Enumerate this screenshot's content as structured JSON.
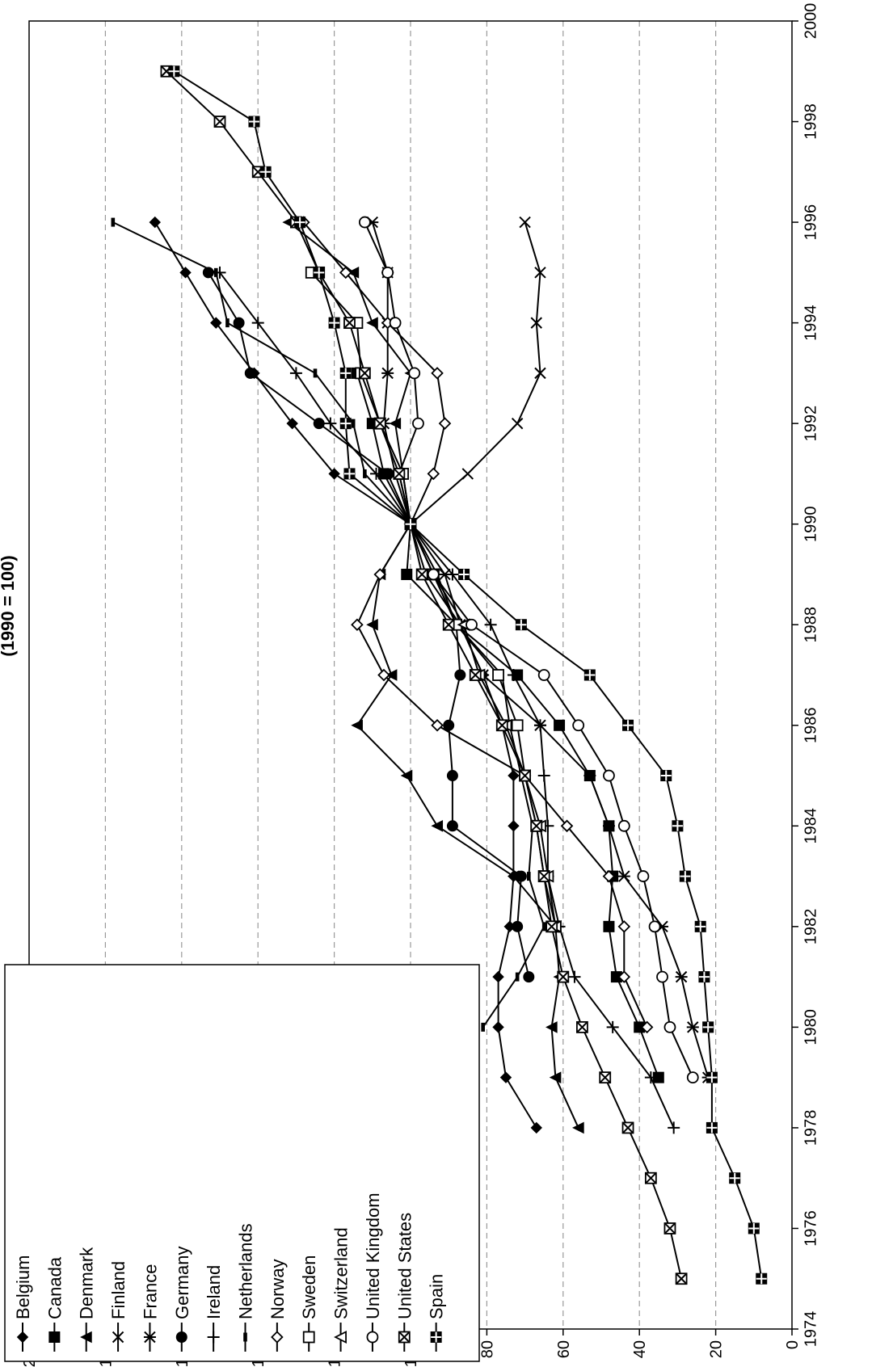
{
  "chart_data": {
    "type": "line",
    "title": "(1990 = 100)",
    "xlabel": "",
    "ylabel": "",
    "xlim": [
      1974,
      2000
    ],
    "ylim": [
      0,
      200
    ],
    "x_ticks": [
      "1974",
      "1976",
      "1978",
      "1980",
      "1982",
      "1984",
      "1986",
      "1988",
      "1990",
      "1992",
      "1994",
      "1996",
      "1998",
      "2000"
    ],
    "y_ticks": [
      "0",
      "20",
      "40",
      "60",
      "80",
      "100",
      "120",
      "140",
      "160",
      "180",
      "200"
    ],
    "grid": "dashed horizontal at each y tick",
    "legend_position": "lower-left",
    "series": [
      {
        "name": "Belgium",
        "marker": "diamond-filled",
        "x": [
          1978,
          1979,
          1980,
          1981,
          1982,
          1983,
          1984,
          1985,
          1986,
          1987,
          1988,
          1989,
          1990,
          1991,
          1992,
          1993,
          1994,
          1995,
          1996
        ],
        "y": [
          67,
          75,
          77,
          77,
          74,
          73,
          73,
          73,
          76,
          81,
          87,
          96,
          100,
          120,
          131,
          141,
          151,
          159,
          167
        ]
      },
      {
        "name": "Canada",
        "marker": "square-filled",
        "x": [
          1979,
          1980,
          1981,
          1982,
          1983,
          1984,
          1985,
          1986,
          1987,
          1988,
          1989,
          1990,
          1991,
          1992,
          1993
        ],
        "y": [
          35,
          40,
          46,
          48,
          47,
          48,
          53,
          61,
          72,
          88,
          101,
          100,
          107,
          110,
          114
        ]
      },
      {
        "name": "Denmark",
        "marker": "triangle-filled",
        "x": [
          1978,
          1979,
          1980,
          1981,
          1982,
          1983,
          1984,
          1985,
          1986,
          1987,
          1988,
          1989,
          1990,
          1991,
          1992,
          1993,
          1994,
          1995,
          1996
        ],
        "y": [
          56,
          62,
          63,
          61,
          62,
          73,
          93,
          101,
          114,
          105,
          110,
          108,
          100,
          102,
          104,
          100,
          110,
          115,
          132
        ]
      },
      {
        "name": "Finland",
        "marker": "x",
        "x": [
          1990,
          1991,
          1992,
          1993,
          1994,
          1995,
          1996
        ],
        "y": [
          100,
          85,
          72,
          66,
          67,
          66,
          70
        ]
      },
      {
        "name": "France",
        "marker": "star",
        "x": [
          1979,
          1980,
          1981,
          1982,
          1983,
          1984,
          1985,
          1986,
          1987,
          1988,
          1989,
          1990,
          1991,
          1992,
          1993,
          1994,
          1995,
          1996
        ],
        "y": [
          22,
          26,
          29,
          34,
          44,
          48,
          53,
          66,
          81,
          87,
          91,
          100,
          104,
          107,
          106,
          106,
          106,
          110
        ]
      },
      {
        "name": "Germany",
        "marker": "circle-filled",
        "x": [
          1981,
          1982,
          1983,
          1984,
          1985,
          1986,
          1987,
          1988,
          1989,
          1990,
          1991,
          1992,
          1993,
          1994,
          1995
        ],
        "y": [
          69,
          72,
          71,
          89,
          89,
          90,
          87,
          88,
          94,
          100,
          106,
          124,
          142,
          145,
          153
        ]
      },
      {
        "name": "Ireland",
        "marker": "plus",
        "x": [
          1978,
          1979,
          1980,
          1981,
          1982,
          1983,
          1984,
          1985,
          1986,
          1987,
          1988,
          1989,
          1990,
          1991,
          1992,
          1993,
          1994,
          1995
        ],
        "y": [
          31,
          37,
          47,
          57,
          61,
          64,
          64,
          65,
          66,
          73,
          79,
          89,
          100,
          109,
          121,
          130,
          140,
          150
        ]
      },
      {
        "name": "Netherlands",
        "marker": "dash",
        "x": [
          1980,
          1981,
          1982,
          1983,
          1984,
          1985,
          1986,
          1987,
          1988,
          1989,
          1990,
          1991,
          1992,
          1993,
          1994,
          1995,
          1996
        ],
        "y": [
          81,
          72,
          65,
          69,
          68,
          71,
          74,
          76,
          88,
          93,
          100,
          112,
          115,
          125,
          148,
          151,
          178
        ]
      },
      {
        "name": "Norway",
        "marker": "diamond-open",
        "x": [
          1980,
          1981,
          1982,
          1983,
          1984,
          1985,
          1986,
          1987,
          1988,
          1989,
          1990,
          1991,
          1992,
          1993,
          1994,
          1995,
          1996
        ],
        "y": [
          38,
          44,
          44,
          48,
          59,
          70,
          93,
          107,
          114,
          108,
          100,
          94,
          91,
          93,
          106,
          117,
          128
        ]
      },
      {
        "name": "Sweden",
        "marker": "square-open",
        "x": [
          1982,
          1983,
          1984,
          1985,
          1986,
          1987,
          1988,
          1989,
          1990,
          1991,
          1992,
          1993,
          1994,
          1995
        ],
        "y": [
          62,
          65,
          67,
          70,
          72,
          77,
          88,
          94,
          100,
          102,
          108,
          113,
          114,
          126
        ]
      },
      {
        "name": "Switzerland",
        "marker": "triangle-open",
        "x": [
          1982,
          1983,
          1984,
          1985,
          1986,
          1987,
          1988,
          1989,
          1990
        ],
        "y": [
          62,
          64,
          66,
          70,
          75,
          82,
          86,
          94,
          100
        ]
      },
      {
        "name": "United Kingdom",
        "marker": "circle-open",
        "x": [
          1979,
          1980,
          1981,
          1982,
          1983,
          1984,
          1985,
          1986,
          1987,
          1988,
          1989,
          1990,
          1991,
          1992,
          1993,
          1994,
          1995,
          1996
        ],
        "y": [
          26,
          32,
          34,
          36,
          39,
          44,
          48,
          56,
          65,
          84,
          94,
          100,
          103,
          98,
          99,
          104,
          106,
          112
        ]
      },
      {
        "name": "United States",
        "marker": "x-box",
        "x": [
          1975,
          1976,
          1977,
          1978,
          1979,
          1980,
          1981,
          1982,
          1983,
          1984,
          1985,
          1986,
          1987,
          1988,
          1989,
          1990,
          1991,
          1992,
          1993,
          1994,
          1995,
          1996,
          1997,
          1998,
          1999
        ],
        "y": [
          29,
          32,
          37,
          43,
          49,
          55,
          60,
          63,
          65,
          67,
          70,
          76,
          83,
          90,
          97,
          100,
          103,
          108,
          112,
          116,
          124,
          130,
          140,
          150,
          164
        ]
      },
      {
        "name": "Spain",
        "marker": "cross-box",
        "x": [
          1975,
          1976,
          1977,
          1978,
          1979,
          1980,
          1981,
          1982,
          1983,
          1984,
          1985,
          1986,
          1987,
          1988,
          1989,
          1990,
          1991,
          1992,
          1993,
          1994,
          1995,
          1996,
          1997,
          1998,
          1999
        ],
        "y": [
          8,
          10,
          15,
          21,
          21,
          22,
          23,
          24,
          28,
          30,
          33,
          43,
          53,
          71,
          86,
          100,
          116,
          117,
          117,
          120,
          124,
          129,
          138,
          141,
          162
        ]
      }
    ]
  }
}
